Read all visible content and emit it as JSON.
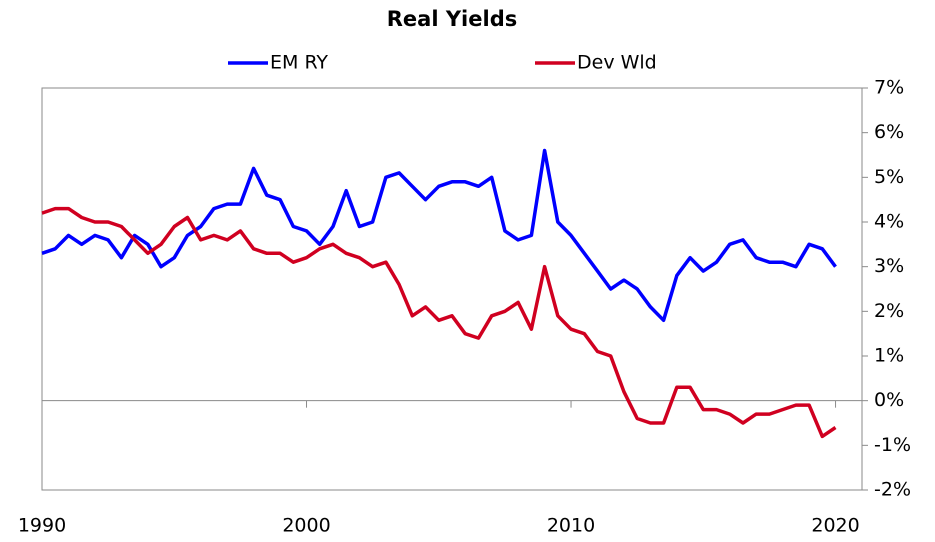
{
  "chart_data": {
    "type": "line",
    "title": "Real Yields",
    "x": [
      1990,
      1990.5,
      1991,
      1991.5,
      1992,
      1992.5,
      1993,
      1993.5,
      1994,
      1994.5,
      1995,
      1995.5,
      1996,
      1996.5,
      1997,
      1997.5,
      1998,
      1998.5,
      1999,
      1999.5,
      2000,
      2000.5,
      2001,
      2001.5,
      2002,
      2002.5,
      2003,
      2003.5,
      2004,
      2004.5,
      2005,
      2005.5,
      2006,
      2006.5,
      2007,
      2007.5,
      2008,
      2008.5,
      2009,
      2009.5,
      2010,
      2010.5,
      2011,
      2011.5,
      2012,
      2012.5,
      2013,
      2013.5,
      2014,
      2014.5,
      2015,
      2015.5,
      2016,
      2016.5,
      2017,
      2017.5,
      2018,
      2018.5,
      2019,
      2019.5,
      2020
    ],
    "series": [
      {
        "name": "EM RY",
        "color": "#0000ff",
        "values": [
          3.3,
          3.4,
          3.7,
          3.5,
          3.7,
          3.6,
          3.2,
          3.7,
          3.5,
          3.0,
          3.2,
          3.7,
          3.9,
          4.3,
          4.4,
          4.4,
          5.2,
          4.6,
          4.5,
          3.9,
          3.8,
          3.5,
          3.9,
          4.7,
          3.9,
          4.0,
          5.0,
          5.1,
          4.8,
          4.5,
          4.8,
          4.9,
          4.9,
          4.8,
          5.0,
          3.8,
          3.6,
          3.7,
          5.6,
          4.0,
          3.7,
          3.3,
          2.9,
          2.5,
          2.7,
          2.5,
          2.1,
          1.8,
          2.8,
          3.2,
          2.9,
          3.1,
          3.5,
          3.6,
          3.2,
          3.1,
          3.1,
          3.0,
          3.5,
          3.4,
          3.0
        ]
      },
      {
        "name": "Dev Wld",
        "color": "#d00020",
        "values": [
          4.2,
          4.3,
          4.3,
          4.1,
          4.0,
          4.0,
          3.9,
          3.6,
          3.3,
          3.5,
          3.9,
          4.1,
          3.6,
          3.7,
          3.6,
          3.8,
          3.4,
          3.3,
          3.3,
          3.1,
          3.2,
          3.4,
          3.5,
          3.3,
          3.2,
          3.0,
          3.1,
          2.6,
          1.9,
          2.1,
          1.8,
          1.9,
          1.5,
          1.4,
          1.9,
          2.0,
          2.2,
          1.6,
          3.0,
          1.9,
          1.6,
          1.5,
          1.1,
          1.0,
          0.2,
          -0.4,
          -0.5,
          -0.5,
          0.3,
          0.3,
          -0.2,
          -0.2,
          -0.3,
          -0.5,
          -0.3,
          -0.3,
          -0.2,
          -0.1,
          -0.1,
          -0.8,
          -0.6
        ]
      }
    ],
    "xlim": [
      1990,
      2021
    ],
    "xticks": [
      1990,
      2000,
      2010,
      2020
    ],
    "ylim": [
      -2,
      7
    ],
    "yticks": [
      {
        "value": -2,
        "label": "-2%"
      },
      {
        "value": -1,
        "label": "-1%"
      },
      {
        "value": 0,
        "label": "0%"
      },
      {
        "value": 1,
        "label": "1%"
      },
      {
        "value": 2,
        "label": "2%"
      },
      {
        "value": 3,
        "label": "3%"
      },
      {
        "value": 4,
        "label": "4%"
      },
      {
        "value": 5,
        "label": "5%"
      },
      {
        "value": 6,
        "label": "6%"
      },
      {
        "value": 7,
        "label": "7%"
      }
    ],
    "legend": "top"
  }
}
